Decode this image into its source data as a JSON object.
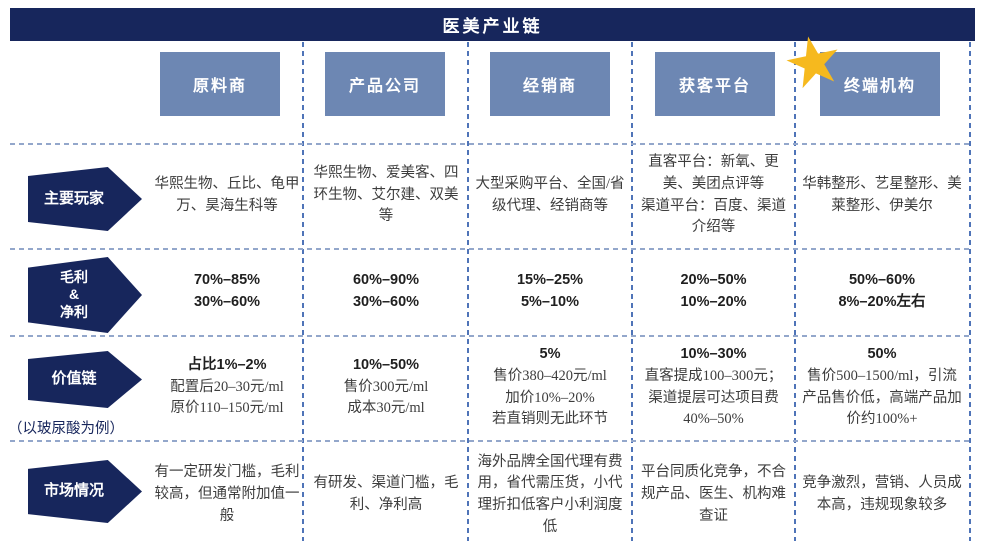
{
  "title": "医美产业链",
  "columns": [
    "原料商",
    "产品公司",
    "经销商",
    "获客平台",
    "终端机构"
  ],
  "icons": {
    "star": "★"
  },
  "rows": [
    {
      "label": "主要玩家",
      "cells": [
        {
          "body": "华熙生物、丘比、龟甲万、昊海生科等"
        },
        {
          "body": "华熙生物、爱美客、四环生物、艾尔建、双美等"
        },
        {
          "body": "大型采购平台、全国/省级代理、经销商等"
        },
        {
          "body": "直客平台：新氧、更美、美团点评等\n渠道平台：百度、渠道介绍等"
        },
        {
          "body": "华韩整形、艺星整形、美莱整形、伊美尔"
        }
      ]
    },
    {
      "label": "毛利\n&\n净利",
      "cells": [
        {
          "head": "70%–85%\n30%–60%"
        },
        {
          "head": "60%–90%\n30%–60%"
        },
        {
          "head": "15%–25%\n5%–10%"
        },
        {
          "head": "20%–50%\n10%–20%"
        },
        {
          "head": "50%–60%\n8%–20%左右"
        }
      ]
    },
    {
      "label": "价值链",
      "note": "（以玻尿酸为例）",
      "cells": [
        {
          "head": "占比1%–2%",
          "body": "配置后20–30元/ml\n原价110–150元/ml"
        },
        {
          "head": "10%–50%",
          "body": "售价300元/ml\n成本30元/ml"
        },
        {
          "head": "5%",
          "body": "售价380–420元/ml\n加价10%–20%\n若直销则无此环节"
        },
        {
          "head": "10%–30%",
          "body": "直客提成100–300元；渠道提层可达项目费40%–50%"
        },
        {
          "head": "50%",
          "body": "售价500–1500/ml，引流产品售价低，高端产品加价约100%+"
        }
      ]
    },
    {
      "label": "市场情况",
      "cells": [
        {
          "body": "有一定研发门槛，毛利较高，但通常附加值一般"
        },
        {
          "body": "有研发、渠道门槛，毛利、净利高"
        },
        {
          "body": "海外品牌全国代理有费用，省代需压货，小代理折扣低客户小利润度低"
        },
        {
          "body": "平台同质化竞争，不合规产品、医生、机构难查证"
        },
        {
          "body": "竞争激烈，营销、人员成本高，违规现象较多"
        }
      ]
    }
  ],
  "colors": {
    "navy": "#17265c",
    "header_box": "#6d87b3",
    "vertical_dash": "#4f74b8",
    "horizontal_dash": "#93a7cb",
    "star": "#f6b91e",
    "body_text": "#3d3d3d"
  }
}
